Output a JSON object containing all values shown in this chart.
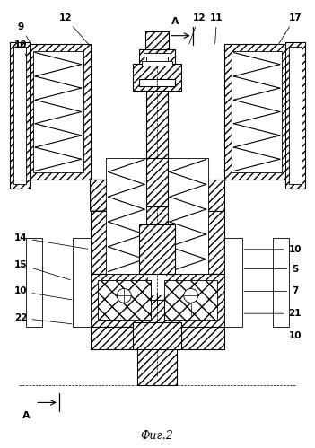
{
  "title": "Фиг.2",
  "fig_width": 3.51,
  "fig_height": 4.99,
  "dpi": 100,
  "bg_color": "#ffffff",
  "line_color": "#000000"
}
